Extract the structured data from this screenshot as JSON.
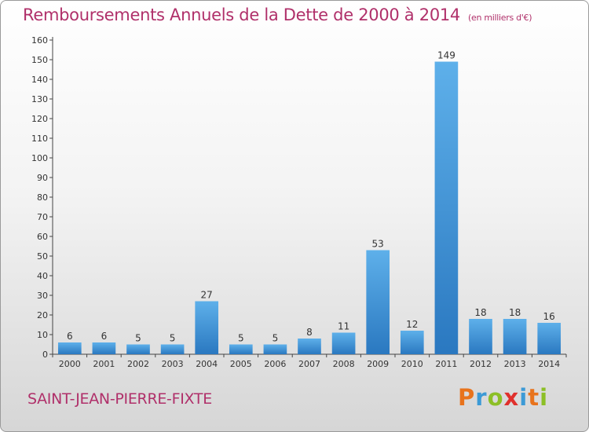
{
  "header": {
    "title": "Remboursements Annuels de la Dette de 2000 à 2014",
    "unit": "(en milliers d'€)"
  },
  "footer": {
    "commune": "SAINT-JEAN-PIERRE-FIXTE",
    "logo_letters": [
      "P",
      "r",
      "o",
      "x",
      "i",
      "t",
      "i"
    ],
    "logo_colors": [
      "#e8731c",
      "#3c9ad6",
      "#8cbf26",
      "#e0302c",
      "#3c9ad6",
      "#e8731c",
      "#8cbf26"
    ]
  },
  "chart_data": {
    "type": "bar",
    "title": "Remboursements Annuels de la Dette de 2000 à 2014",
    "categories": [
      "2000",
      "2001",
      "2002",
      "2003",
      "2004",
      "2005",
      "2006",
      "2007",
      "2008",
      "2009",
      "2010",
      "2011",
      "2012",
      "2013",
      "2014"
    ],
    "values": [
      6,
      6,
      5,
      5,
      27,
      5,
      5,
      8,
      11,
      53,
      12,
      149,
      18,
      18,
      16
    ],
    "ylim": [
      0,
      160
    ],
    "yticks": [
      0,
      10,
      20,
      30,
      40,
      50,
      60,
      70,
      80,
      90,
      100,
      110,
      120,
      130,
      140,
      150,
      160
    ],
    "grid": false,
    "bar_color": "#3d8fd6"
  }
}
